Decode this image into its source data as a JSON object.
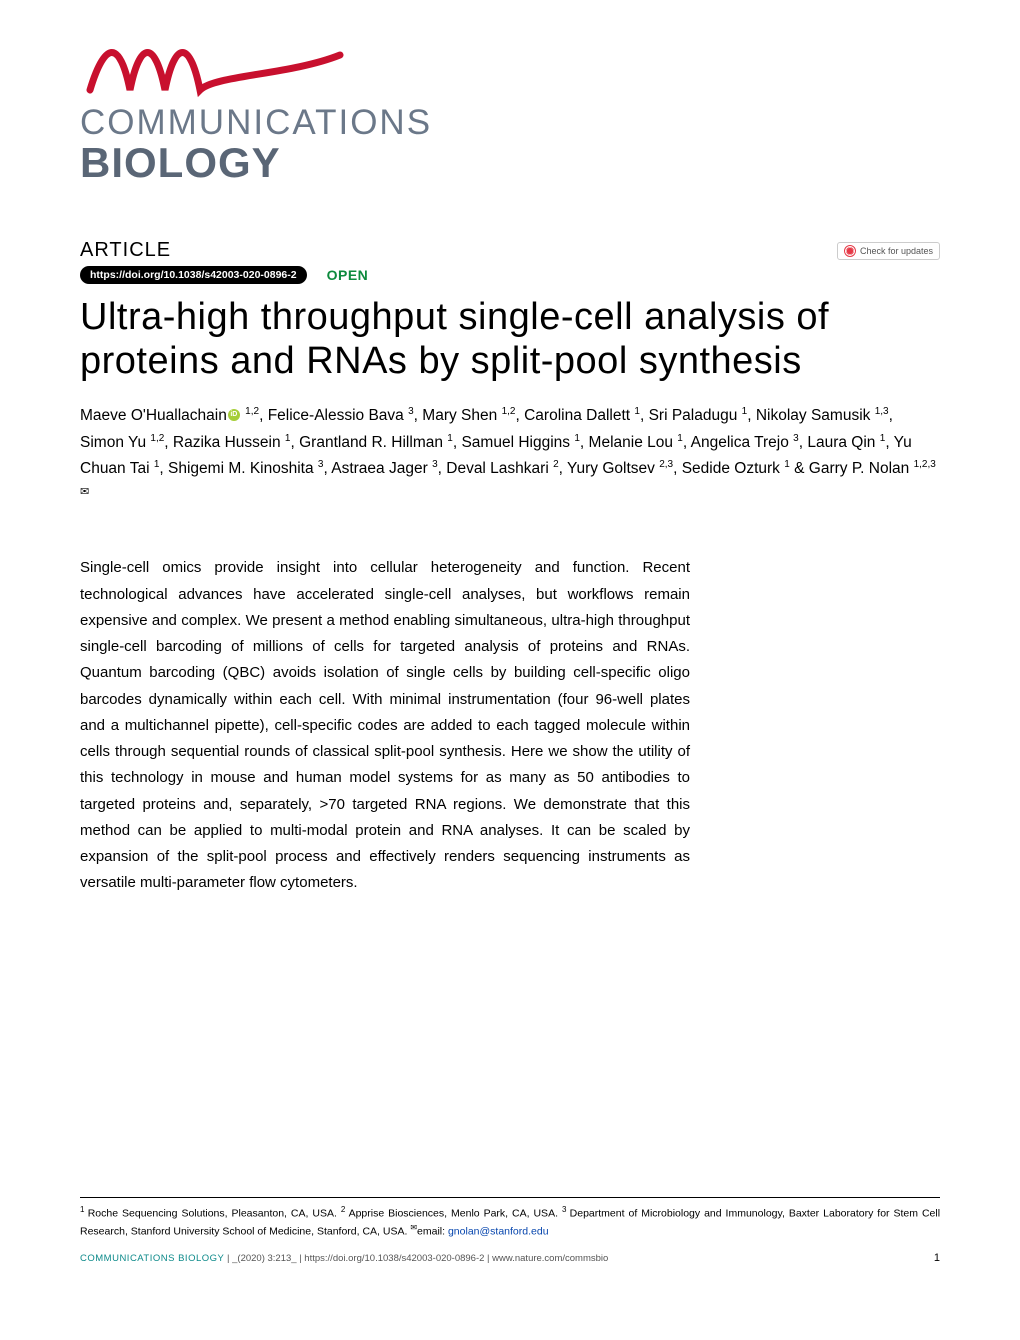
{
  "journal": {
    "name_line1": "COMMUNICATIONS",
    "name_line2": "BIOLOGY",
    "brand_color": "#c8102e",
    "text_color_1": "#6b7889",
    "text_color_2": "#5a6676"
  },
  "header": {
    "article_label": "ARTICLE",
    "check_updates_label": "Check for updates",
    "doi": "https://doi.org/10.1038/s42003-020-0896-2",
    "open_label": "OPEN"
  },
  "title": "Ultra-high throughput single-cell analysis of proteins and RNAs by split-pool synthesis",
  "authors": [
    {
      "name": "Maeve O'Huallachain",
      "affil": "1,2",
      "orcid": true
    },
    {
      "name": "Felice-Alessio Bava",
      "affil": "3"
    },
    {
      "name": "Mary Shen",
      "affil": "1,2"
    },
    {
      "name": "Carolina Dallett",
      "affil": "1"
    },
    {
      "name": "Sri Paladugu",
      "affil": "1"
    },
    {
      "name": "Nikolay Samusik",
      "affil": "1,3"
    },
    {
      "name": "Simon Yu",
      "affil": "1,2"
    },
    {
      "name": "Razika Hussein",
      "affil": "1"
    },
    {
      "name": "Grantland R. Hillman",
      "affil": "1"
    },
    {
      "name": "Samuel Higgins",
      "affil": "1"
    },
    {
      "name": "Melanie Lou",
      "affil": "1"
    },
    {
      "name": "Angelica Trejo",
      "affil": "3"
    },
    {
      "name": "Laura Qin",
      "affil": "1"
    },
    {
      "name": "Yu Chuan Tai",
      "affil": "1"
    },
    {
      "name": "Shigemi M. Kinoshita",
      "affil": "3"
    },
    {
      "name": "Astraea Jager",
      "affil": "3"
    },
    {
      "name": "Deval Lashkari",
      "affil": "2"
    },
    {
      "name": "Yury Goltsev",
      "affil": "2,3"
    },
    {
      "name": "Sedide Ozturk",
      "affil": "1"
    },
    {
      "name": "Garry P. Nolan",
      "affil": "1,2,3",
      "corresponding": true,
      "last": true
    }
  ],
  "abstract": "Single-cell omics provide insight into cellular heterogeneity and function. Recent technological advances have accelerated single-cell analyses, but workflows remain expensive and complex. We present a method enabling simultaneous, ultra-high throughput single-cell barcoding of millions of cells for targeted analysis of proteins and RNAs. Quantum barcoding (QBC) avoids isolation of single cells by building cell-specific oligo barcodes dynamically within each cell. With minimal instrumentation (four 96-well plates and a multichannel pipette), cell-specific codes are added to each tagged molecule within cells through sequential rounds of classical split-pool synthesis. Here we show the utility of this technology in mouse and human model systems for as many as 50 antibodies to targeted proteins and, separately, >70 targeted RNA regions. We demonstrate that this method can be applied to multi-modal protein and RNA analyses. It can be scaled by expansion of the split-pool process and effectively renders sequencing instruments as versatile multi-parameter flow cytometers.",
  "affiliations": {
    "list": [
      {
        "num": "1",
        "text": "Roche Sequencing Solutions, Pleasanton, CA, USA."
      },
      {
        "num": "2",
        "text": "Apprise Biosciences, Menlo Park, CA, USA."
      },
      {
        "num": "3",
        "text": "Department of Microbiology and Immunology, Baxter Laboratory for Stem Cell Research, Stanford University School of Medicine, Stanford, CA, USA."
      }
    ],
    "email_label": "email:",
    "email": "gnolan@stanford.edu"
  },
  "footer": {
    "journal_abbrev": "COMMUNICATIONS BIOLOGY",
    "citation_text": "|   _(2020) 3:213_ | https://doi.org/10.1038/s42003-020-0896-2 | www.nature.com/commsbio",
    "page_number": "1"
  }
}
